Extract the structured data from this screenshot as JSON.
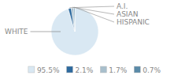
{
  "chart_data": {
    "type": "pie",
    "categories": [
      "WHITE",
      "A.I.",
      "ASIAN",
      "HISPANIC"
    ],
    "values": [
      95.5,
      2.1,
      1.7,
      0.7
    ],
    "value_labels": [
      "95.5%",
      "2.1%",
      "1.7%",
      "0.7%"
    ],
    "colors": [
      "#d9e8f3",
      "#2e6a9e",
      "#a8bfcc",
      "#5a8aa8"
    ],
    "legend": "bottom"
  }
}
